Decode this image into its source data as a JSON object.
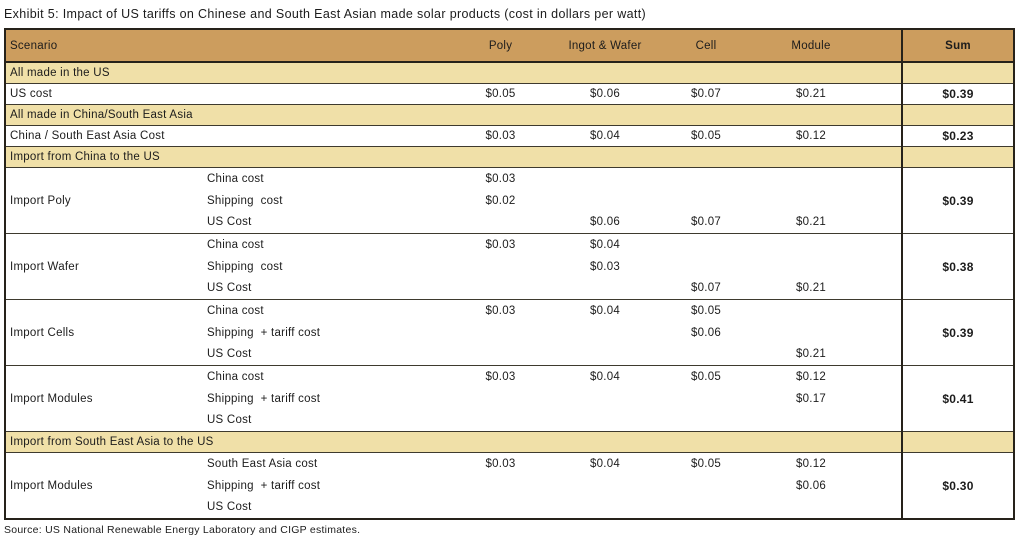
{
  "title": "Exhibit 5: Impact of US tariffs on Chinese and South East Asian made solar products (cost in dollars per watt)",
  "source": "Source: US National Renewable Energy Laboratory and CIGP estimates.",
  "colors": {
    "header_bg": "#CC9D5E",
    "section_bg": "#F0E0A8",
    "border": "#26221A",
    "background": "#FFFFFF"
  },
  "table": {
    "columns": [
      "Scenario",
      "Poly",
      "Ingot & Wafer",
      "Cell",
      "Module",
      "Sum"
    ],
    "rows": [
      {
        "type": "section",
        "label": "All made in the US"
      },
      {
        "type": "data",
        "label": "US cost",
        "values": [
          "$0.05",
          "$0.06",
          "$0.07",
          "$0.21"
        ],
        "sum": "$0.39"
      },
      {
        "type": "section",
        "label": "All made in China/South East Asia"
      },
      {
        "type": "data",
        "label": "China / South East Asia Cost",
        "values": [
          "$0.03",
          "$0.04",
          "$0.05",
          "$0.12"
        ],
        "sum": "$0.23"
      },
      {
        "type": "section",
        "label": "Import from China to the US"
      },
      {
        "type": "group",
        "label": "Import Poly",
        "sum": "$0.39",
        "subrows": [
          {
            "label": "China cost",
            "values": [
              "$0.03",
              "",
              "",
              ""
            ]
          },
          {
            "label": "Shipping  cost",
            "values": [
              "$0.02",
              "",
              "",
              ""
            ]
          },
          {
            "label": "US Cost",
            "values": [
              "",
              "$0.06",
              "$0.07",
              "$0.21"
            ]
          }
        ]
      },
      {
        "type": "group",
        "label": "Import Wafer",
        "sum": "$0.38",
        "subrows": [
          {
            "label": "China cost",
            "values": [
              "$0.03",
              "$0.04",
              "",
              ""
            ]
          },
          {
            "label": "Shipping  cost",
            "values": [
              "",
              "$0.03",
              "",
              ""
            ]
          },
          {
            "label": "US Cost",
            "values": [
              "",
              "",
              "$0.07",
              "$0.21"
            ]
          }
        ]
      },
      {
        "type": "group",
        "label": "Import Cells",
        "sum": "$0.39",
        "subrows": [
          {
            "label": "China cost",
            "values": [
              "$0.03",
              "$0.04",
              "$0.05",
              ""
            ]
          },
          {
            "label": "Shipping  + tariff cost",
            "values": [
              "",
              "",
              "$0.06",
              ""
            ]
          },
          {
            "label": "US Cost",
            "values": [
              "",
              "",
              "",
              "$0.21"
            ]
          }
        ]
      },
      {
        "type": "group",
        "label": "Import Modules",
        "sum": "$0.41",
        "subrows": [
          {
            "label": "China cost",
            "values": [
              "$0.03",
              "$0.04",
              "$0.05",
              "$0.12"
            ]
          },
          {
            "label": "Shipping  + tariff cost",
            "values": [
              "",
              "",
              "",
              "$0.17"
            ]
          },
          {
            "label": "US Cost",
            "values": [
              "",
              "",
              "",
              ""
            ]
          }
        ]
      },
      {
        "type": "section",
        "label": "Import from South East Asia to the US"
      },
      {
        "type": "group",
        "label": "Import Modules",
        "sum": "$0.30",
        "subrows": [
          {
            "label": "South East Asia cost",
            "values": [
              "$0.03",
              "$0.04",
              "$0.05",
              "$0.12"
            ]
          },
          {
            "label": "Shipping  + tariff cost",
            "values": [
              "",
              "",
              "",
              "$0.06"
            ]
          },
          {
            "label": "US Cost",
            "values": [
              "",
              "",
              "",
              ""
            ]
          }
        ]
      }
    ]
  }
}
